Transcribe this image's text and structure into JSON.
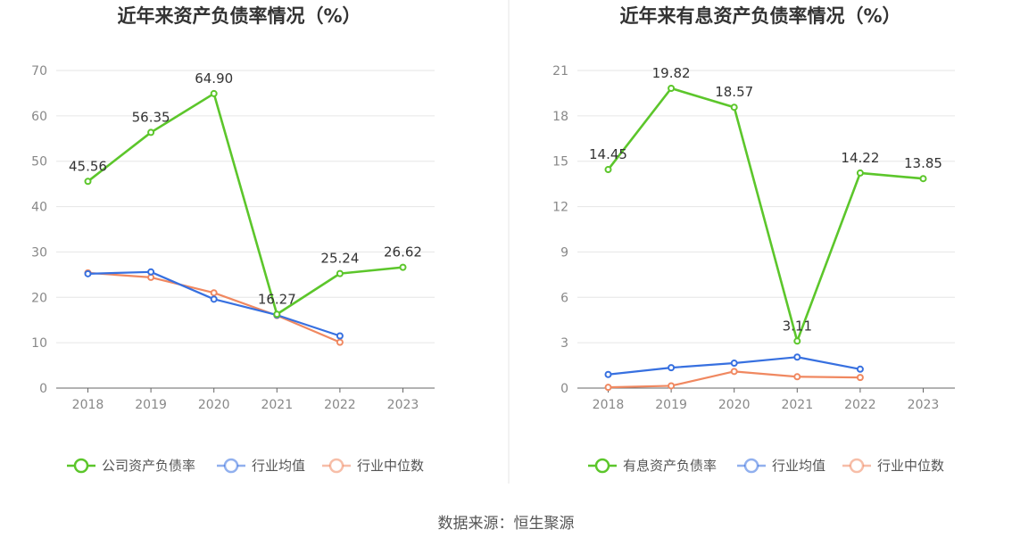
{
  "source": "数据来源：恒生聚源",
  "colors": {
    "company": "#5cc62b",
    "avg": "#3770e0",
    "median": "#f08860"
  },
  "chart_data": [
    {
      "type": "line",
      "title": "近年来资产负债率情况（%）",
      "x": [
        "2018",
        "2019",
        "2020",
        "2021",
        "2022",
        "2023"
      ],
      "ylim": [
        0,
        70
      ],
      "yticks": [
        0,
        10,
        20,
        30,
        40,
        50,
        60,
        70
      ],
      "grid": true,
      "legend": "bottom",
      "series": [
        {
          "name": "公司资产负债率",
          "key": "company",
          "labeled": true,
          "values": [
            45.56,
            56.35,
            64.9,
            16.27,
            25.24,
            26.62
          ],
          "labels": [
            "45.56",
            "56.35",
            "64.90",
            "16.27",
            "25.24",
            "26.62"
          ]
        },
        {
          "name": "行业均值",
          "key": "avg",
          "values": [
            25.2,
            25.6,
            19.6,
            16.1,
            11.5,
            null
          ]
        },
        {
          "name": "行业中位数",
          "key": "median",
          "values": [
            25.4,
            24.4,
            21.0,
            16.0,
            10.1,
            null
          ]
        }
      ]
    },
    {
      "type": "line",
      "title": "近年来有息资产负债率情况（%）",
      "x": [
        "2018",
        "2019",
        "2020",
        "2021",
        "2022",
        "2023"
      ],
      "ylim": [
        0,
        21
      ],
      "yticks": [
        0,
        3,
        6,
        9,
        12,
        15,
        18,
        21
      ],
      "grid": true,
      "legend": "bottom",
      "series": [
        {
          "name": "有息资产负债率",
          "key": "company",
          "labeled": true,
          "values": [
            14.45,
            19.82,
            18.57,
            3.11,
            14.22,
            13.85
          ],
          "labels": [
            "14.45",
            "19.82",
            "18.57",
            "3.11",
            "14.22",
            "13.85"
          ]
        },
        {
          "name": "行业均值",
          "key": "avg",
          "values": [
            0.9,
            1.35,
            1.65,
            2.05,
            1.25,
            null
          ]
        },
        {
          "name": "行业中位数",
          "key": "median",
          "values": [
            0.05,
            0.15,
            1.1,
            0.75,
            0.7,
            null
          ]
        }
      ]
    }
  ]
}
